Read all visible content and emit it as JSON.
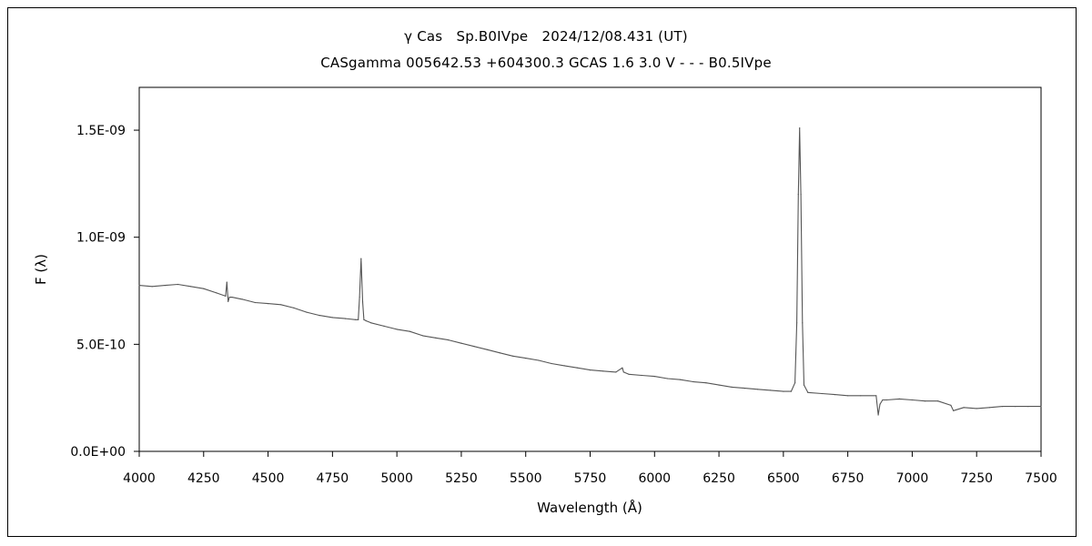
{
  "chart_data": {
    "type": "line",
    "title": "γ Cas　Sp.B0IVpe　2024/12/08.431 (UT)",
    "subtitle": "CASgamma 005642.53 +604300.3 GCAS 1.6 3.0 V - - - B0.5IVpe",
    "xlabel": "Wavelength (Å)",
    "ylabel": "F (λ)",
    "xlim": [
      4000,
      7500
    ],
    "ylim": [
      0,
      1.7e-09
    ],
    "x_ticks": [
      4000,
      4250,
      4500,
      4750,
      5000,
      5250,
      5500,
      5750,
      6000,
      6250,
      6500,
      6750,
      7000,
      7250,
      7500
    ],
    "x_tick_labels": [
      "4000",
      "4250",
      "4500",
      "4750",
      "5000",
      "5250",
      "5500",
      "5750",
      "6000",
      "6250",
      "6500",
      "6750",
      "7000",
      "7250",
      "7500"
    ],
    "y_ticks": [
      0,
      5e-10,
      1e-09,
      1.5e-09
    ],
    "y_tick_labels": [
      "0.0E+00",
      "5.0E-10",
      "1.0E-09",
      "1.5E-09"
    ],
    "grid": false,
    "legend": "none",
    "line_color": "#555555",
    "series": [
      {
        "x": [
          4000,
          4050,
          4100,
          4150,
          4200,
          4250,
          4300,
          4335,
          4340,
          4345,
          4350,
          4360,
          4400,
          4450,
          4500,
          4550,
          4600,
          4650,
          4700,
          4750,
          4800,
          4840,
          4850,
          4855,
          4861,
          4867,
          4872,
          4880,
          4900,
          4950,
          5000,
          5050,
          5100,
          5150,
          5200,
          5250,
          5300,
          5350,
          5400,
          5450,
          5500,
          5550,
          5600,
          5650,
          5700,
          5750,
          5800,
          5850,
          5875,
          5880,
          5900,
          5950,
          6000,
          6050,
          6100,
          6150,
          6200,
          6250,
          6300,
          6350,
          6400,
          6450,
          6500,
          6530,
          6545,
          6552,
          6558,
          6563,
          6568,
          6574,
          6580,
          6595,
          6650,
          6700,
          6750,
          6800,
          6860,
          6868,
          6875,
          6885,
          6900,
          6950,
          7000,
          7050,
          7100,
          7150,
          7160,
          7200,
          7250,
          7300,
          7350,
          7400,
          7450,
          7500
        ],
        "y": [
          7.75e-10,
          7.7e-10,
          7.75e-10,
          7.8e-10,
          7.7e-10,
          7.6e-10,
          7.4e-10,
          7.25e-10,
          7.9e-10,
          7e-10,
          7.2e-10,
          7.2e-10,
          7.1e-10,
          6.95e-10,
          6.9e-10,
          6.85e-10,
          6.7e-10,
          6.5e-10,
          6.35e-10,
          6.25e-10,
          6.2e-10,
          6.15e-10,
          6.15e-10,
          7.2e-10,
          9e-10,
          7e-10,
          6.15e-10,
          6.1e-10,
          6e-10,
          5.85e-10,
          5.7e-10,
          5.6e-10,
          5.4e-10,
          5.3e-10,
          5.2e-10,
          5.05e-10,
          4.9e-10,
          4.75e-10,
          4.6e-10,
          4.45e-10,
          4.35e-10,
          4.25e-10,
          4.1e-10,
          4e-10,
          3.9e-10,
          3.8e-10,
          3.75e-10,
          3.7e-10,
          3.9e-10,
          3.7e-10,
          3.6e-10,
          3.55e-10,
          3.5e-10,
          3.4e-10,
          3.35e-10,
          3.25e-10,
          3.2e-10,
          3.1e-10,
          3e-10,
          2.95e-10,
          2.9e-10,
          2.85e-10,
          2.8e-10,
          2.8e-10,
          3.2e-10,
          6e-10,
          1.2e-09,
          1.51e-09,
          1.2e-09,
          6e-10,
          3.1e-10,
          2.75e-10,
          2.7e-10,
          2.65e-10,
          2.6e-10,
          2.6e-10,
          2.6e-10,
          1.7e-10,
          2.2e-10,
          2.4e-10,
          2.4e-10,
          2.45e-10,
          2.4e-10,
          2.35e-10,
          2.35e-10,
          2.15e-10,
          1.9e-10,
          2.05e-10,
          2e-10,
          2.05e-10,
          2.1e-10,
          2.1e-10,
          2.1e-10,
          2.1e-10
        ]
      }
    ]
  }
}
